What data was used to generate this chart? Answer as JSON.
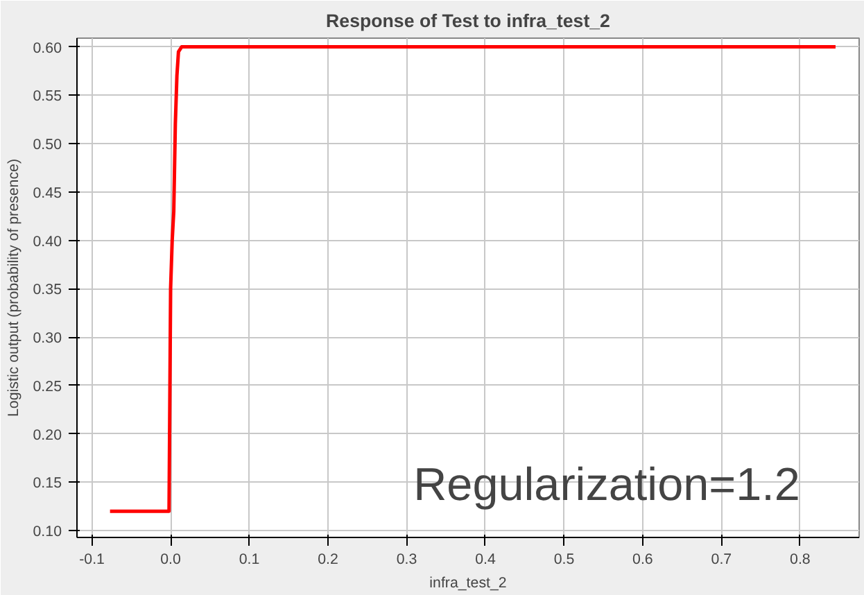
{
  "chart_data": {
    "type": "line",
    "title": "Response of Test to infra_test_2",
    "xlabel": "infra_test_2",
    "ylabel": "Logistic output (probability of presence)",
    "x": [
      -0.077,
      -0.002,
      0.0,
      0.002,
      0.004,
      0.006,
      0.008,
      0.01,
      0.014,
      0.845
    ],
    "series": [
      {
        "color": "#ff0000",
        "values": [
          0.12,
          0.12,
          0.35,
          0.4,
          0.43,
          0.52,
          0.57,
          0.595,
          0.6,
          0.6
        ]
      }
    ],
    "xlim": [
      -0.119,
      0.875
    ],
    "ylim": [
      0.093,
      0.609
    ],
    "xticks": [
      -0.1,
      {
        "value": 0.0,
        "label": "0.0"
      },
      0.1,
      0.2,
      0.3,
      0.4,
      0.5,
      0.6,
      0.7,
      0.8
    ],
    "yticks": [
      {
        "value": 0.1,
        "label": "0.10"
      },
      {
        "value": 0.15,
        "label": "0.15"
      },
      {
        "value": 0.2,
        "label": "0.20"
      },
      {
        "value": 0.25,
        "label": "0.25"
      },
      {
        "value": 0.3,
        "label": "0.30"
      },
      {
        "value": 0.35,
        "label": "0.35"
      },
      {
        "value": 0.4,
        "label": "0.40"
      },
      {
        "value": 0.45,
        "label": "0.45"
      },
      {
        "value": 0.5,
        "label": "0.50"
      },
      {
        "value": 0.55,
        "label": "0.55"
      },
      {
        "value": 0.6,
        "label": "0.60"
      }
    ],
    "grid": true,
    "marker": "none",
    "line_style": "solid",
    "annotations": [
      "Regularization=1.2"
    ]
  }
}
